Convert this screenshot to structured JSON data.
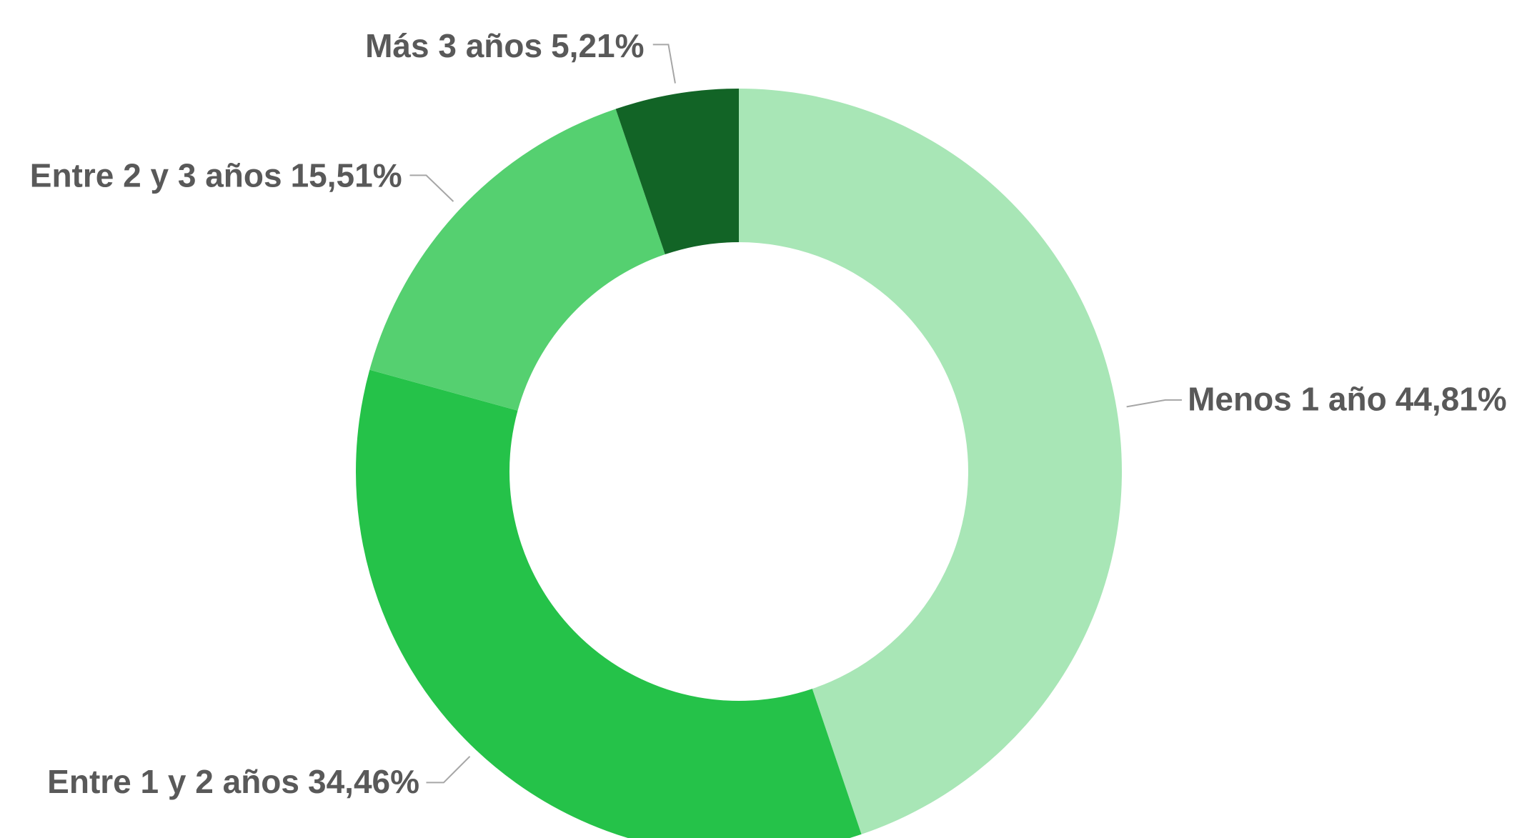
{
  "chart_data": {
    "type": "donut",
    "categories": [
      "Menos 1 año",
      "Entre 1 y 2 años",
      "Entre 2 y 3 años",
      "Más 3 años"
    ],
    "values": [
      44.81,
      34.46,
      15.51,
      5.21
    ],
    "value_labels": [
      "44,81%",
      "34,46%",
      "15,51%",
      "5,21%"
    ],
    "colors": [
      "#a8e6b6",
      "#25c249",
      "#55d070",
      "#126426"
    ]
  }
}
